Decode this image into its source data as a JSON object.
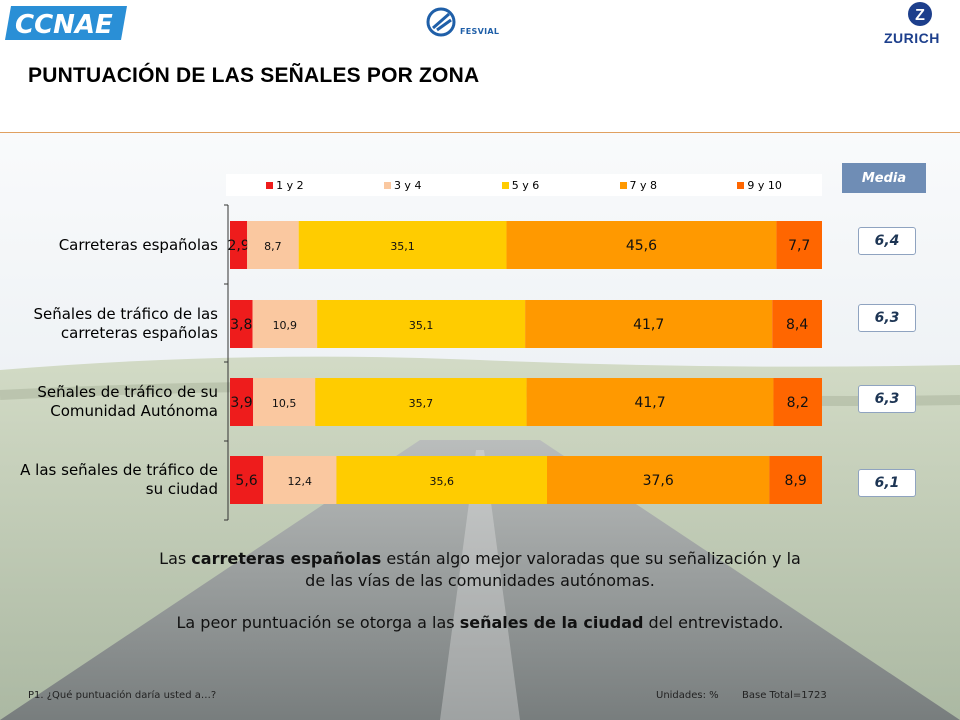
{
  "header": {
    "title": "PUNTUACIÓN DE LAS SEÑALES POR ZONA",
    "logo_left": "CCNAE",
    "logo_center": "FESVIAL",
    "logo_right": "ZURICH"
  },
  "media": {
    "label": "Media",
    "values": [
      "6,4",
      "6,3",
      "6,3",
      "6,1"
    ]
  },
  "chart_data": {
    "type": "bar",
    "orientation": "horizontal",
    "stacked": true,
    "units": "%",
    "categories": [
      "Carreteras españolas",
      "Señales de tráfico de las carreteras españolas",
      "Señales de tráfico de su Comunidad Autónoma",
      "A las señales de tráfico de su ciudad"
    ],
    "category_lines": [
      [
        "Carreteras españolas"
      ],
      [
        "Señales de tráfico de las",
        "carreteras españolas"
      ],
      [
        "Señales de tráfico de su",
        "Comunidad Autónoma"
      ],
      [
        "A las señales de tráfico de",
        "su ciudad"
      ]
    ],
    "series": [
      {
        "name": "1 y 2",
        "color": "#ee1c1c",
        "values": [
          2.9,
          3.8,
          3.9,
          5.6
        ],
        "labels": [
          "2,9",
          "3,8",
          "3,9",
          "5,6"
        ]
      },
      {
        "name": "3 y 4",
        "color": "#fac8a0",
        "values": [
          8.7,
          10.9,
          10.5,
          12.4
        ],
        "labels": [
          "8,7",
          "10,9",
          "10,5",
          "12,4"
        ]
      },
      {
        "name": "5 y 6",
        "color": "#ffcc00",
        "values": [
          35.1,
          35.1,
          35.7,
          35.6
        ],
        "labels": [
          "35,1",
          "35,1",
          "35,7",
          "35,6"
        ]
      },
      {
        "name": "7 y 8",
        "color": "#ff9900",
        "values": [
          45.6,
          41.7,
          41.7,
          37.6
        ],
        "labels": [
          "45,6",
          "41,7",
          "41,7",
          "37,6"
        ]
      },
      {
        "name": "9 y 10",
        "color": "#ff6600",
        "values": [
          7.7,
          8.4,
          8.2,
          8.9
        ],
        "labels": [
          "7,7",
          "8,4",
          "8,2",
          "8,9"
        ]
      }
    ],
    "legend_position": "top",
    "grid": false
  },
  "summary": {
    "line1_pre": "Las ",
    "line1_bold": "carreteras españolas",
    "line1_post": " están algo mejor valoradas que su señalización y la",
    "line2": "de las vías de las comunidades autónomas.",
    "line3_pre": "La peor puntuación se otorga a las ",
    "line3_bold": "señales de la ciudad",
    "line3_post": " del entrevistado."
  },
  "footer": {
    "question": "P1. ¿Qué puntuación daría usted a…?",
    "units": "Unidades: %",
    "base": "Base Total=1723"
  }
}
